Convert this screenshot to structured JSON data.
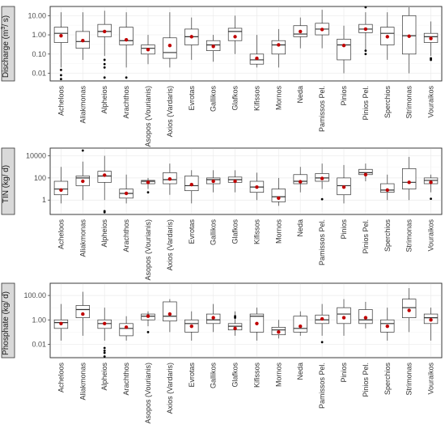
{
  "chart_data": [
    {
      "type": "boxplot",
      "ylabel": "Discharge (m³/s)",
      "ylabel_main": "Discharge (m",
      "ylabel_sup": "3",
      "ylabel_tail": "/ s)",
      "yscale": "log",
      "ylim": [
        0.004,
        30
      ],
      "yticks": [
        0.01,
        0.1,
        1,
        10
      ],
      "ytick_labels": [
        "0.01",
        "0.10",
        "1.00",
        "10.00"
      ],
      "categories": [
        "Acheloos",
        "Aliakmonas",
        "Alpheios",
        "Arachthos",
        "Asopos (Vourianis)",
        "Axios (Vardaris)",
        "Evrotas",
        "Gallikos",
        "Glafkos",
        "Kifissos",
        "Mornos",
        "Neda",
        "Pamissos Pel.",
        "Pinios",
        "Pinios Pel.",
        "Sperchios",
        "Strimonas",
        "Vouraikos"
      ],
      "boxes": [
        {
          "min": 0.02,
          "q1": 0.4,
          "median": 1.2,
          "q3": 2.5,
          "max": 15,
          "mean": 0.9,
          "outliers": [
            0.015,
            0.008,
            0.005
          ]
        },
        {
          "min": 0.05,
          "q1": 0.2,
          "median": 0.45,
          "q3": 1.5,
          "max": 15,
          "mean": 0.5,
          "outliers": []
        },
        {
          "min": 0.08,
          "q1": 0.8,
          "median": 1.5,
          "q3": 3.5,
          "max": 18,
          "mean": 1.5,
          "outliers": [
            0.05,
            0.03,
            0.02,
            0.006
          ]
        },
        {
          "min": 0.02,
          "q1": 0.3,
          "median": 0.5,
          "q3": 2.5,
          "max": 15,
          "mean": 0.55,
          "outliers": [
            0.006
          ]
        },
        {
          "min": 0.03,
          "q1": 0.1,
          "median": 0.2,
          "q3": 0.3,
          "max": 1,
          "mean": 0.17,
          "outliers": []
        },
        {
          "min": 0.02,
          "q1": 0.06,
          "median": 0.12,
          "q3": 0.7,
          "max": 15,
          "mean": 0.28,
          "outliers": []
        },
        {
          "min": 0.05,
          "q1": 0.3,
          "median": 0.8,
          "q3": 2,
          "max": 8,
          "mean": 0.8,
          "outliers": []
        },
        {
          "min": 0.04,
          "q1": 0.15,
          "median": 0.3,
          "q3": 0.5,
          "max": 1,
          "mean": 0.25,
          "outliers": []
        },
        {
          "min": 0.1,
          "q1": 0.5,
          "median": 1.5,
          "q3": 2.2,
          "max": 10,
          "mean": 0.8,
          "outliers": []
        },
        {
          "min": 0.02,
          "q1": 0.03,
          "median": 0.05,
          "q3": 0.1,
          "max": 1,
          "mean": 0.06,
          "outliers": []
        },
        {
          "min": 0.02,
          "q1": 0.1,
          "median": 0.3,
          "q3": 0.5,
          "max": 2,
          "mean": 0.3,
          "outliers": []
        },
        {
          "min": 0.2,
          "q1": 0.8,
          "median": 1.1,
          "q3": 3,
          "max": 8,
          "mean": 1.5,
          "outliers": []
        },
        {
          "min": 0.2,
          "q1": 1,
          "median": 2,
          "q3": 4,
          "max": 20,
          "mean": 1.9,
          "outliers": []
        },
        {
          "min": 0.01,
          "q1": 0.05,
          "median": 0.3,
          "q3": 0.6,
          "max": 3,
          "mean": 0.28,
          "outliers": []
        },
        {
          "min": 0.15,
          "q1": 1.3,
          "median": 2,
          "q3": 3.5,
          "max": 15,
          "mean": 2,
          "outliers": [
            0.15,
            0.1,
            30
          ]
        },
        {
          "min": 0.05,
          "q1": 0.3,
          "median": 1.2,
          "q3": 2.5,
          "max": 15,
          "mean": 0.8,
          "outliers": []
        },
        {
          "min": 0.01,
          "q1": 0.1,
          "median": 0.9,
          "q3": 10,
          "max": 30,
          "mean": 0.85,
          "outliers": []
        },
        {
          "min": 0.08,
          "q1": 0.4,
          "median": 0.8,
          "q3": 1.2,
          "max": 5,
          "mean": 0.65,
          "outliers": [
            0.06,
            0.05
          ]
        }
      ]
    },
    {
      "type": "boxplot",
      "ylabel": "TIN (kg/ d)",
      "ylabel_main": "TIN (kg/ d)",
      "ylabel_sup": "",
      "ylabel_tail": "",
      "yscale": "log",
      "ylim": [
        0.05,
        50000
      ],
      "yticks": [
        1,
        100,
        10000
      ],
      "ytick_labels": [
        "1",
        "100",
        "10000"
      ],
      "categories": [
        "Acheloos",
        "Aliakmonas",
        "Alpheios",
        "Arachthos",
        "Asopos (Vourianis)",
        "Axios (Vardaris)",
        "Evrotas",
        "Gallikos",
        "Glafkos",
        "Kifissos",
        "Mornos",
        "Neda",
        "Pamissos Pel.",
        "Pinios",
        "Pinios Pel.",
        "Sperchios",
        "Strimonas",
        "Vouraikos"
      ],
      "boxes": [
        {
          "min": 0.5,
          "q1": 3,
          "median": 10,
          "q3": 50,
          "max": 1000,
          "mean": 8,
          "outliers": []
        },
        {
          "min": 1,
          "q1": 20,
          "median": 100,
          "q3": 150,
          "max": 3000,
          "mean": 50,
          "outliers": [
            30000
          ]
        },
        {
          "min": 1,
          "q1": 40,
          "median": 150,
          "q3": 400,
          "max": 10000,
          "mean": 180,
          "outliers": [
            0.1,
            0.08
          ]
        },
        {
          "min": 0.5,
          "q1": 1.5,
          "median": 4,
          "q3": 10,
          "max": 200,
          "mean": 4,
          "outliers": []
        },
        {
          "min": 10,
          "q1": 30,
          "median": 50,
          "q3": 60,
          "max": 100,
          "mean": 40,
          "outliers": [
            5
          ]
        },
        {
          "min": 3,
          "q1": 30,
          "median": 70,
          "q3": 300,
          "max": 2000,
          "mean": 80,
          "outliers": []
        },
        {
          "min": 0.5,
          "q1": 7,
          "median": 20,
          "q3": 150,
          "max": 500,
          "mean": 25,
          "outliers": []
        },
        {
          "min": 5,
          "q1": 30,
          "median": 70,
          "q3": 100,
          "max": 500,
          "mean": 50,
          "outliers": []
        },
        {
          "min": 5,
          "q1": 40,
          "median": 70,
          "q3": 120,
          "max": 500,
          "mean": 50,
          "outliers": []
        },
        {
          "min": 1,
          "q1": 5,
          "median": 15,
          "q3": 50,
          "max": 300,
          "mean": 15,
          "outliers": []
        },
        {
          "min": 0.3,
          "q1": 0.7,
          "median": 2,
          "q3": 10,
          "max": 100,
          "mean": 1.5,
          "outliers": []
        },
        {
          "min": 5,
          "q1": 30,
          "median": 50,
          "q3": 200,
          "max": 1000,
          "mean": 45,
          "outliers": []
        },
        {
          "min": 10,
          "q1": 50,
          "median": 100,
          "q3": 250,
          "max": 2000,
          "mean": 90,
          "outliers": [
            1.2
          ]
        },
        {
          "min": 0.5,
          "q1": 3,
          "median": 20,
          "q3": 100,
          "max": 1500,
          "mean": 15,
          "outliers": []
        },
        {
          "min": 50,
          "q1": 200,
          "median": 300,
          "q3": 600,
          "max": 2000,
          "mean": 200,
          "outliers": []
        },
        {
          "min": 1,
          "q1": 5,
          "median": 8,
          "q3": 30,
          "max": 200,
          "mean": 8,
          "outliers": []
        },
        {
          "min": 1,
          "q1": 10,
          "median": 40,
          "q3": 700,
          "max": 8000,
          "mean": 40,
          "outliers": []
        },
        {
          "min": 5,
          "q1": 30,
          "median": 60,
          "q3": 100,
          "max": 200,
          "mean": 40,
          "outliers": [
            1.3
          ]
        }
      ]
    },
    {
      "type": "boxplot",
      "ylabel": "Phosphate (kg/ d)",
      "ylabel_main": "Phosphate (kg/ d)",
      "ylabel_sup": "",
      "ylabel_tail": "",
      "yscale": "log",
      "ylim": [
        0.0008,
        1000
      ],
      "yticks": [
        0.01,
        1,
        100
      ],
      "ytick_labels": [
        "0.01",
        "1.00",
        "100.00"
      ],
      "categories": [
        "Acheloos",
        "Aliakmonas",
        "Alpheios",
        "Arachthos",
        "Asopos (Vourianis)",
        "Axios (Vardaris)",
        "Evrotas",
        "Gallikos",
        "Glafkos",
        "Kifissos",
        "Mornos",
        "Neda",
        "Pamissos Pel.",
        "Pinios",
        "Pinios Pel.",
        "Sperchios",
        "Strimonas",
        "Vouraikos"
      ],
      "boxes": [
        {
          "min": 0.02,
          "q1": 0.2,
          "median": 0.6,
          "q3": 1,
          "max": 20,
          "mean": 0.5,
          "outliers": []
        },
        {
          "min": 0.05,
          "q1": 1.5,
          "median": 7,
          "q3": 15,
          "max": 200,
          "mean": 3,
          "outliers": []
        },
        {
          "min": 0.02,
          "q1": 0.2,
          "median": 0.5,
          "q3": 1,
          "max": 10,
          "mean": 0.5,
          "outliers": [
            0.005,
            0.003,
            0.002,
            0.001
          ]
        },
        {
          "min": 0.02,
          "q1": 0.05,
          "median": 0.2,
          "q3": 0.5,
          "max": 2,
          "mean": 0.25,
          "outliers": []
        },
        {
          "min": 0.3,
          "q1": 1,
          "median": 2,
          "q3": 3,
          "max": 5,
          "mean": 2,
          "outliers": [
            0.1
          ]
        },
        {
          "min": 0.1,
          "q1": 0.8,
          "median": 2,
          "q3": 30,
          "max": 50,
          "mean": 3,
          "outliers": []
        },
        {
          "min": 0.02,
          "q1": 0.1,
          "median": 0.5,
          "q3": 1,
          "max": 5,
          "mean": 0.3,
          "outliers": []
        },
        {
          "min": 0.1,
          "q1": 0.5,
          "median": 1,
          "q3": 3,
          "max": 20,
          "mean": 1.5,
          "outliers": []
        },
        {
          "min": 0.05,
          "q1": 0.15,
          "median": 0.3,
          "q3": 0.5,
          "max": 5,
          "mean": 0.2,
          "outliers": [
            2,
            1.5
          ]
        },
        {
          "min": 0.02,
          "q1": 0.1,
          "median": 2,
          "q3": 3,
          "max": 10,
          "mean": 0.5,
          "outliers": []
        },
        {
          "min": 0.03,
          "q1": 0.06,
          "median": 0.15,
          "q3": 0.25,
          "max": 1,
          "mean": 0.1,
          "outliers": []
        },
        {
          "min": 0.05,
          "q1": 0.1,
          "median": 0.2,
          "q3": 2,
          "max": 5,
          "mean": 0.3,
          "outliers": []
        },
        {
          "min": 0.05,
          "q1": 0.5,
          "median": 1,
          "q3": 2.5,
          "max": 20,
          "mean": 1.2,
          "outliers": [
            0.015
          ]
        },
        {
          "min": 0.05,
          "q1": 0.5,
          "median": 3,
          "q3": 10,
          "max": 50,
          "mean": 1.5,
          "outliers": []
        },
        {
          "min": 0.2,
          "q1": 0.5,
          "median": 1,
          "q3": 7,
          "max": 30,
          "mean": 1.5,
          "outliers": []
        },
        {
          "min": 0.02,
          "q1": 0.1,
          "median": 0.5,
          "q3": 1,
          "max": 10,
          "mean": 0.3,
          "outliers": []
        },
        {
          "min": 0.1,
          "q1": 1.5,
          "median": 10,
          "q3": 50,
          "max": 400,
          "mean": 6,
          "outliers": []
        },
        {
          "min": 0.02,
          "q1": 0.5,
          "median": 1.5,
          "q3": 3,
          "max": 10,
          "mean": 1,
          "outliers": []
        }
      ]
    }
  ]
}
